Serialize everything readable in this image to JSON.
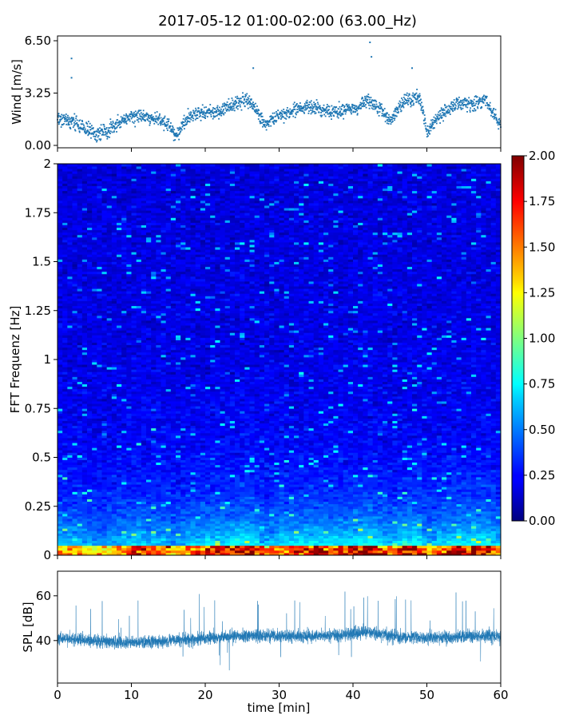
{
  "title": "2017-05-12 01:00-02:00 (63.00_Hz)",
  "chart_data": [
    {
      "type": "scatter",
      "panel": "wind",
      "title": "",
      "xlabel": "",
      "ylabel": "Wind [m/s]",
      "xlim": [
        0,
        60
      ],
      "ylim": [
        0,
        6.5
      ],
      "yticks": [
        0.0,
        3.25,
        6.5
      ],
      "yticklabels": [
        "0.00",
        "3.25",
        "6.50"
      ],
      "marker_color": "#1f77b4",
      "trend": {
        "x": [
          0,
          2,
          4,
          5,
          7,
          9,
          11,
          13,
          15,
          16,
          18,
          20,
          22,
          24,
          26,
          27,
          28,
          30,
          32,
          34,
          36,
          38,
          40,
          42,
          44,
          45,
          47,
          49,
          50,
          52,
          54,
          56,
          58,
          60
        ],
        "y": [
          1.6,
          1.5,
          1.0,
          0.7,
          1.0,
          1.6,
          1.9,
          1.7,
          1.3,
          0.6,
          1.9,
          2.0,
          2.1,
          2.6,
          2.8,
          2.2,
          1.3,
          1.8,
          2.2,
          2.4,
          2.2,
          2.1,
          2.3,
          2.8,
          2.2,
          1.5,
          2.8,
          3.0,
          0.9,
          2.0,
          2.6,
          2.5,
          2.8,
          1.2
        ]
      },
      "outliers": [
        {
          "x": 1.9,
          "y": 5.4
        },
        {
          "x": 1.9,
          "y": 4.2
        },
        {
          "x": 42.3,
          "y": 6.4
        },
        {
          "x": 42.5,
          "y": 5.5
        },
        {
          "x": 48.0,
          "y": 4.8
        },
        {
          "x": 26.5,
          "y": 4.8
        }
      ]
    },
    {
      "type": "heatmap",
      "panel": "spectrogram",
      "title": "",
      "xlabel": "",
      "ylabel": "FFT Frequenz [Hz]",
      "xlim": [
        0,
        60
      ],
      "ylim": [
        0,
        2
      ],
      "yticks": [
        0,
        0.25,
        0.5,
        0.75,
        1,
        1.25,
        1.5,
        1.75,
        2
      ],
      "yticklabels": [
        "0",
        "0.25",
        "0.5",
        "0.75",
        "1",
        "1.25",
        "1.5",
        "1.75",
        "2"
      ],
      "colormap": "jet",
      "colorbar": {
        "range": [
          0,
          2
        ],
        "ticks": [
          0.0,
          0.25,
          0.5,
          0.75,
          1.0,
          1.25,
          1.5,
          1.75,
          2.0
        ],
        "ticklabels": [
          "0.00",
          "0.25",
          "0.50",
          "0.75",
          "1.00",
          "1.25",
          "1.50",
          "1.75",
          "2.00"
        ]
      }
    },
    {
      "type": "line",
      "panel": "spl",
      "title": "",
      "xlabel": "time [min]",
      "ylabel": "SPL [dB]",
      "xlim": [
        0,
        60
      ],
      "ylim": [
        21,
        71
      ],
      "yticks": [
        40,
        60
      ],
      "yticklabels": [
        "40",
        "60"
      ],
      "xticks": [
        0,
        10,
        20,
        30,
        40,
        50,
        60
      ],
      "xticklabels": [
        "0",
        "10",
        "20",
        "30",
        "40",
        "50",
        "60"
      ],
      "line_color": "#1f77b4",
      "level": {
        "x": [
          0,
          5,
          10,
          15,
          20,
          25,
          30,
          35,
          40,
          42,
          45,
          50,
          55,
          60
        ],
        "y": [
          41,
          40,
          39,
          40,
          41,
          42,
          42,
          42,
          43,
          44,
          42,
          41,
          42,
          42
        ]
      }
    }
  ]
}
